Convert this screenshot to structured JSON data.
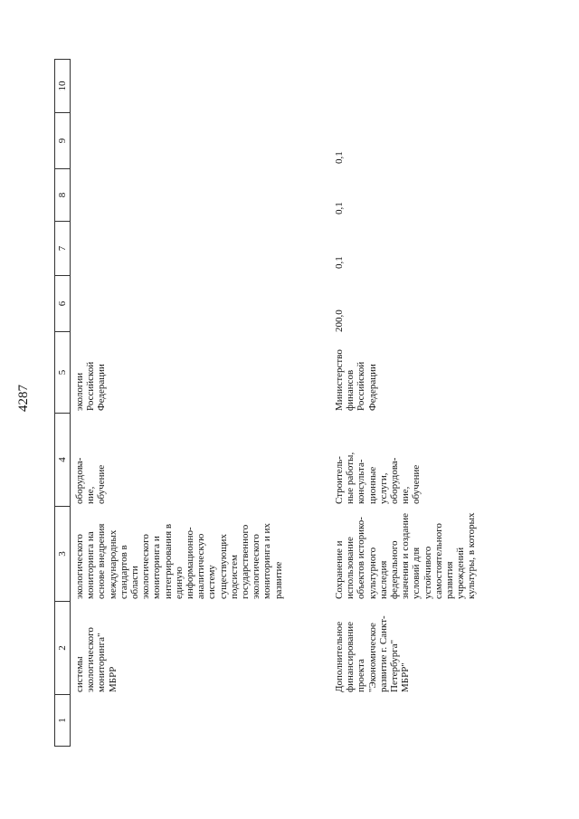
{
  "page_number": "4287",
  "table": {
    "header": [
      "1",
      "2",
      "3",
      "4",
      "5",
      "6",
      "7",
      "8",
      "9",
      "10"
    ],
    "rows": [
      {
        "cells": [
          "",
          "системы\nэкологического\nмониторинга\"\nМБРР",
          "экологического\nмониторинга на\nоснове внедрения\nмеждународных\nстандартов в\nобласти\nэкологического\nмониторинга и\nинтегрирования в\nединую\nинформационно-\nаналитическую\nсистему\nсуществующих\nподсистем\nгосударственного\nэкологического\nмониторинга и их\nразвитие",
          "оборудова-\nние,\nобучение",
          "экологии\nРоссийской\nФедерации",
          "",
          "",
          "",
          "",
          ""
        ]
      },
      {
        "cells": [
          "",
          "Дополнительное\nфинансирование\nпроекта\n\"Экономическое\nразвитие г. Санкт-\nПетербурга\"\nМБРР\"",
          "Сохранение и\nиспользование\nобъектов историко-\nкультурного\nнаследия\nфедерального\nзначения и создание\nусловий для\nустойчивого\nсамостоятельного\nразвития\nучреждений\nкультуры, в которых",
          "Строитель-\nные работы,\nконсульта-\nционные\nуслуги,\nоборудова-\nние,\nобучение",
          "Министерство\nфинансов\nРоссийской\nФедерации",
          "200,0",
          "0,1",
          "0,1",
          "0,1",
          ""
        ]
      }
    ]
  }
}
